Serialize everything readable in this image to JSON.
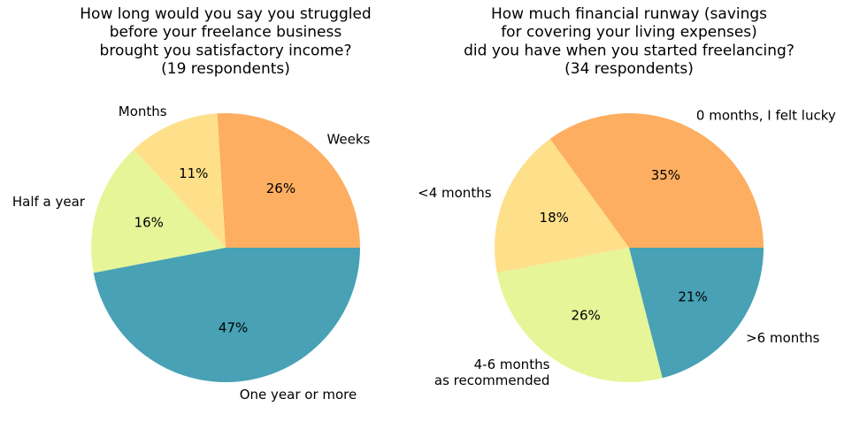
{
  "chart_data": [
    {
      "type": "pie",
      "title": [
        "How long would you say you struggled",
        "before your freelance business",
        "brought you satisfactory income?",
        "(19 respondents)"
      ],
      "categories": [
        "Weeks",
        "Months",
        "Half a year",
        "One year or more"
      ],
      "values": [
        26,
        11,
        16,
        47
      ],
      "value_labels": [
        "26%",
        "11%",
        "16%",
        "47%"
      ],
      "colors": [
        "#fdae61",
        "#fee08b",
        "#e6f598",
        "#48a1b5"
      ]
    },
    {
      "type": "pie",
      "title": [
        "How much financial runway (savings",
        "for covering your living expenses)",
        "did you have when you started freelancing?",
        "(34 respondents)"
      ],
      "categories": [
        "0 months, I felt lucky",
        "<4 months",
        "4-6 months\nas recommended",
        ">6 months"
      ],
      "values": [
        35,
        18,
        26,
        21
      ],
      "value_labels": [
        "35%",
        "18%",
        "26%",
        "21%"
      ],
      "colors": [
        "#fdae61",
        "#fee08b",
        "#e6f598",
        "#48a1b5"
      ]
    }
  ]
}
